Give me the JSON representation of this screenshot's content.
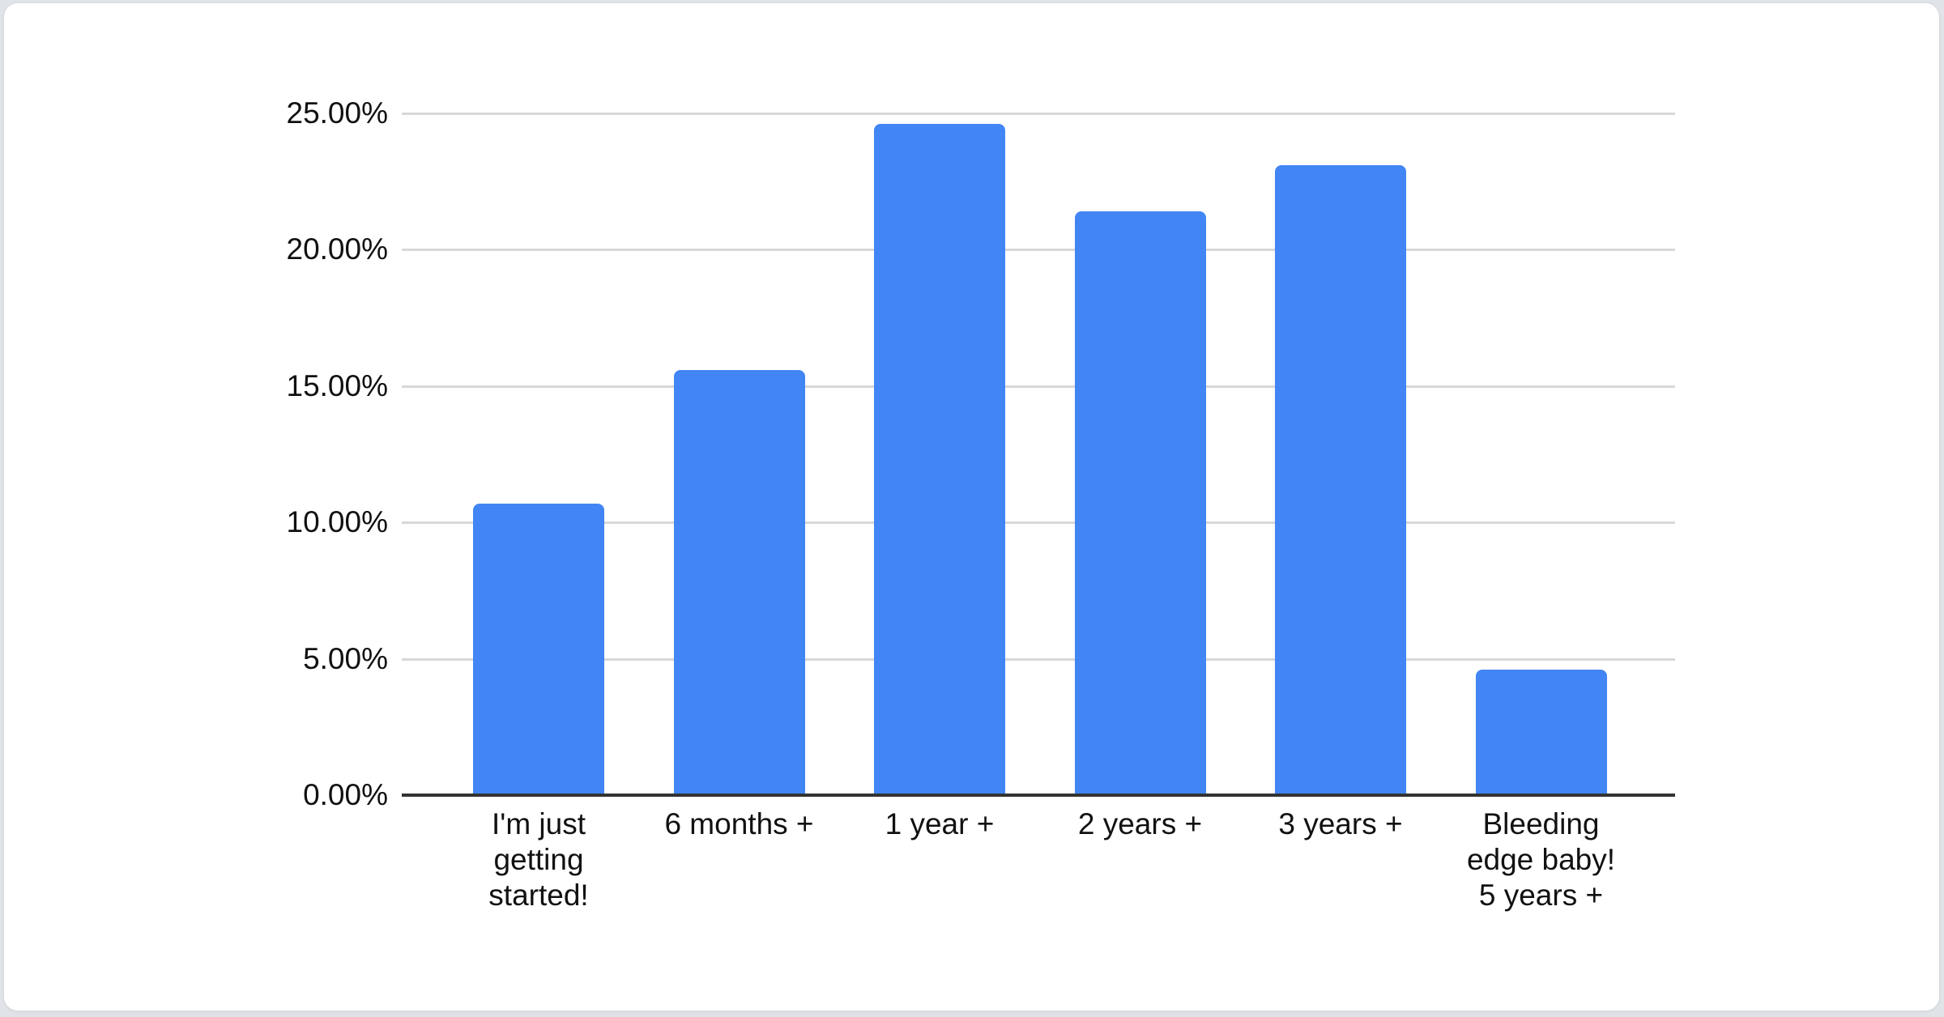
{
  "page": {
    "background_color": "#e0e3e7",
    "card_background": "#ffffff",
    "card_border_color": "#d8dbdf"
  },
  "chart_data": {
    "type": "bar",
    "categories": [
      "I'm just getting started!",
      "6 months +",
      "1 year +",
      "2 years +",
      "3 years +",
      "Bleeding edge baby! 5 years +"
    ],
    "category_display_lines": [
      [
        "I'm just",
        "getting",
        "started!"
      ],
      [
        "6 months +"
      ],
      [
        "1 year +"
      ],
      [
        "2 years +"
      ],
      [
        "3 years +"
      ],
      [
        "Bleeding",
        "edge baby!",
        "5 years +"
      ]
    ],
    "values": [
      10.7,
      15.6,
      24.6,
      21.4,
      23.1,
      4.6
    ],
    "unit": "%",
    "ylim": [
      0,
      25
    ],
    "y_ticks": [
      {
        "value": 0,
        "label": "0.00%"
      },
      {
        "value": 5,
        "label": "5.00%"
      },
      {
        "value": 10,
        "label": "10.00%"
      },
      {
        "value": 15,
        "label": "15.00%"
      },
      {
        "value": 20,
        "label": "20.00%"
      },
      {
        "value": 25,
        "label": "25.00%"
      }
    ],
    "grid": true,
    "legend": "none",
    "bar_color": "#4285f4",
    "gridline_color": "#d8d8d8",
    "axis_line_color": "#333333",
    "tick_label_color": "#111111"
  }
}
